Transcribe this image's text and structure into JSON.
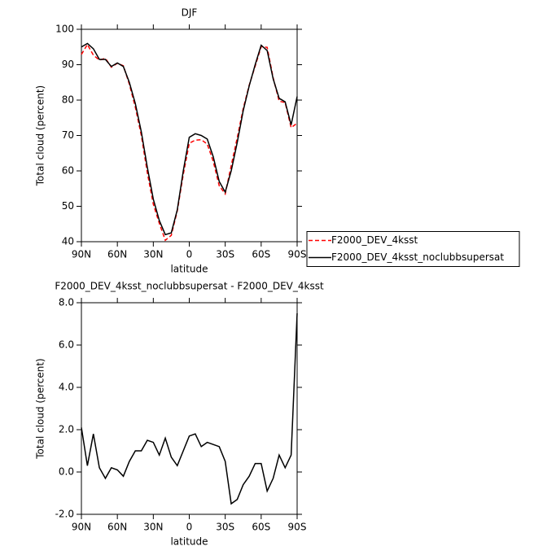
{
  "chart_data": [
    {
      "type": "line",
      "title": "DJF",
      "xlabel": "latitude",
      "ylabel": "Total cloud (percent)",
      "x": [
        90,
        85,
        80,
        75,
        70,
        65,
        60,
        55,
        50,
        45,
        40,
        35,
        30,
        25,
        20,
        15,
        10,
        5,
        0,
        -5,
        -10,
        -15,
        -20,
        -25,
        -30,
        -35,
        -40,
        -45,
        -50,
        -55,
        -60,
        -65,
        -70,
        -75,
        -80,
        -85,
        -90
      ],
      "xlim": [
        90,
        -90
      ],
      "xticks": [
        {
          "value": 90,
          "label": "90N"
        },
        {
          "value": 60,
          "label": "60N"
        },
        {
          "value": 30,
          "label": "30N"
        },
        0,
        {
          "value": -30,
          "label": "30S"
        },
        {
          "value": -60,
          "label": "60S"
        },
        {
          "value": -90,
          "label": "90S"
        }
      ],
      "ylim": [
        40,
        100
      ],
      "yticks": [
        40,
        50,
        60,
        70,
        80,
        90,
        100
      ],
      "legend": "right",
      "series": [
        {
          "name": "F2000_DEV_4ksst",
          "color": "#ff0000",
          "linestyle": "dashed",
          "values": [
            92.9,
            95.7,
            92.7,
            91.3,
            91.8,
            89.3,
            90.4,
            89.7,
            84.5,
            78,
            70,
            59.5,
            50.6,
            45.2,
            40.4,
            41.8,
            48.7,
            59,
            67.8,
            68.7,
            68.8,
            67.6,
            62.7,
            55.8,
            53.5,
            61.5,
            69.3,
            77.6,
            84.2,
            89.6,
            95.1,
            94.9,
            86.3,
            79.7,
            79.3,
            72.2,
            73.5
          ]
        },
        {
          "name": "F2000_DEV_4ksst_noclubbsupersat",
          "color": "#000000",
          "linestyle": "solid",
          "values": [
            95,
            96,
            94.5,
            91.5,
            91.5,
            89.5,
            90.5,
            89.5,
            85,
            79,
            71,
            61,
            52,
            46,
            42,
            42.5,
            49,
            60,
            69.5,
            70.5,
            70,
            69,
            64,
            57,
            54,
            60,
            68,
            77,
            84,
            90,
            95.5,
            94,
            86,
            80.5,
            79.5,
            73,
            81
          ]
        }
      ]
    },
    {
      "type": "line",
      "title": "F2000_DEV_4ksst_noclubbsupersat - F2000_DEV_4ksst",
      "xlabel": "latitude",
      "ylabel": "Total cloud (percent)",
      "x": [
        90,
        85,
        80,
        75,
        70,
        65,
        60,
        55,
        50,
        45,
        40,
        35,
        30,
        25,
        20,
        15,
        10,
        5,
        0,
        -5,
        -10,
        -15,
        -20,
        -25,
        -30,
        -35,
        -40,
        -45,
        -50,
        -55,
        -60,
        -65,
        -70,
        -75,
        -80,
        -85,
        -90
      ],
      "xlim": [
        90,
        -90
      ],
      "xticks": [
        {
          "value": 90,
          "label": "90N"
        },
        {
          "value": 60,
          "label": "60N"
        },
        {
          "value": 30,
          "label": "30N"
        },
        0,
        {
          "value": -30,
          "label": "30S"
        },
        {
          "value": -60,
          "label": "60S"
        },
        {
          "value": -90,
          "label": "90S"
        }
      ],
      "ylim": [
        -2,
        8
      ],
      "yticks": [
        {
          "value": -2,
          "label": "-2.0"
        },
        {
          "value": 0,
          "label": "0.0"
        },
        {
          "value": 2,
          "label": "2.0"
        },
        {
          "value": 4,
          "label": "4.0"
        },
        {
          "value": 6,
          "label": "6.0"
        },
        {
          "value": 8,
          "label": "8.0"
        }
      ],
      "series": [
        {
          "color": "#000000",
          "linestyle": "solid",
          "values": [
            2.1,
            0.3,
            1.8,
            0.2,
            -0.3,
            0.2,
            0.1,
            -0.2,
            0.5,
            1.0,
            1.0,
            1.5,
            1.4,
            0.8,
            1.6,
            0.7,
            0.3,
            1.0,
            1.7,
            1.8,
            1.2,
            1.4,
            1.3,
            1.2,
            0.5,
            -1.5,
            -1.3,
            -0.6,
            -0.2,
            0.4,
            0.4,
            -0.9,
            -0.3,
            0.8,
            0.2,
            0.8,
            7.5
          ]
        }
      ]
    }
  ]
}
